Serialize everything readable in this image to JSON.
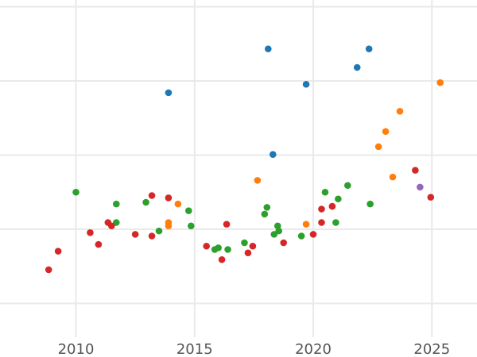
{
  "chart_data": {
    "type": "scatter",
    "title": "",
    "xlabel": "",
    "ylabel": "",
    "xlim": [
      2006.8,
      2026.9
    ],
    "ylim": [
      0,
      10
    ],
    "grid": true,
    "legend": "none",
    "x_ticks": [
      2010,
      2015,
      2020,
      2025
    ],
    "x_tick_labels": [
      "2010",
      "2015",
      "2020",
      "2025"
    ],
    "y_ticks": [
      1,
      3.2,
      5.4,
      7.6,
      9.8
    ],
    "y_tick_labels": [],
    "colors": {
      "blue": "#1f77b4",
      "orange": "#ff7f0e",
      "green": "#2ca02c",
      "red": "#d62728",
      "purple": "#9467bd"
    },
    "series": [
      {
        "color": "#1f77b4",
        "points": [
          [
            2013.9,
            7.25
          ],
          [
            2018.1,
            8.55
          ],
          [
            2019.7,
            7.5
          ],
          [
            2021.85,
            8.0
          ],
          [
            2022.35,
            8.55
          ],
          [
            2018.3,
            5.42
          ]
        ]
      },
      {
        "color": "#ff7f0e",
        "points": [
          [
            2013.9,
            3.4
          ],
          [
            2013.9,
            3.3
          ],
          [
            2014.3,
            3.95
          ],
          [
            2017.65,
            4.65
          ],
          [
            2019.7,
            3.35
          ],
          [
            2022.75,
            5.65
          ],
          [
            2023.05,
            6.1
          ],
          [
            2023.35,
            4.75
          ],
          [
            2023.65,
            6.7
          ],
          [
            2025.35,
            7.55
          ]
        ]
      },
      {
        "color": "#2ca02c",
        "points": [
          [
            2010.0,
            4.3
          ],
          [
            2011.7,
            3.4
          ],
          [
            2011.7,
            3.95
          ],
          [
            2012.95,
            4.0
          ],
          [
            2013.5,
            3.15
          ],
          [
            2014.75,
            3.75
          ],
          [
            2014.85,
            3.3
          ],
          [
            2015.85,
            2.6
          ],
          [
            2016.0,
            2.65
          ],
          [
            2016.4,
            2.6
          ],
          [
            2017.1,
            2.8
          ],
          [
            2017.95,
            3.65
          ],
          [
            2018.05,
            3.85
          ],
          [
            2018.35,
            3.05
          ],
          [
            2018.5,
            3.3
          ],
          [
            2018.55,
            3.15
          ],
          [
            2019.5,
            3.0
          ],
          [
            2020.5,
            4.3
          ],
          [
            2020.95,
            3.4
          ],
          [
            2021.05,
            4.1
          ],
          [
            2021.45,
            4.5
          ],
          [
            2022.4,
            3.95
          ]
        ]
      },
      {
        "color": "#d62728",
        "points": [
          [
            2008.85,
            2.0
          ],
          [
            2009.25,
            2.55
          ],
          [
            2010.6,
            3.1
          ],
          [
            2010.95,
            2.75
          ],
          [
            2011.35,
            3.4
          ],
          [
            2011.5,
            3.3
          ],
          [
            2012.5,
            3.05
          ],
          [
            2013.2,
            4.2
          ],
          [
            2013.2,
            3.0
          ],
          [
            2013.9,
            4.13
          ],
          [
            2015.5,
            2.7
          ],
          [
            2016.15,
            2.3
          ],
          [
            2016.35,
            3.35
          ],
          [
            2017.25,
            2.5
          ],
          [
            2017.45,
            2.7
          ],
          [
            2018.75,
            2.8
          ],
          [
            2020.0,
            3.05
          ],
          [
            2020.35,
            3.4
          ],
          [
            2020.35,
            3.8
          ],
          [
            2020.8,
            3.88
          ],
          [
            2024.3,
            4.95
          ],
          [
            2024.95,
            4.15
          ]
        ]
      },
      {
        "color": "#9467bd",
        "points": [
          [
            2024.5,
            4.45
          ]
        ]
      }
    ]
  }
}
